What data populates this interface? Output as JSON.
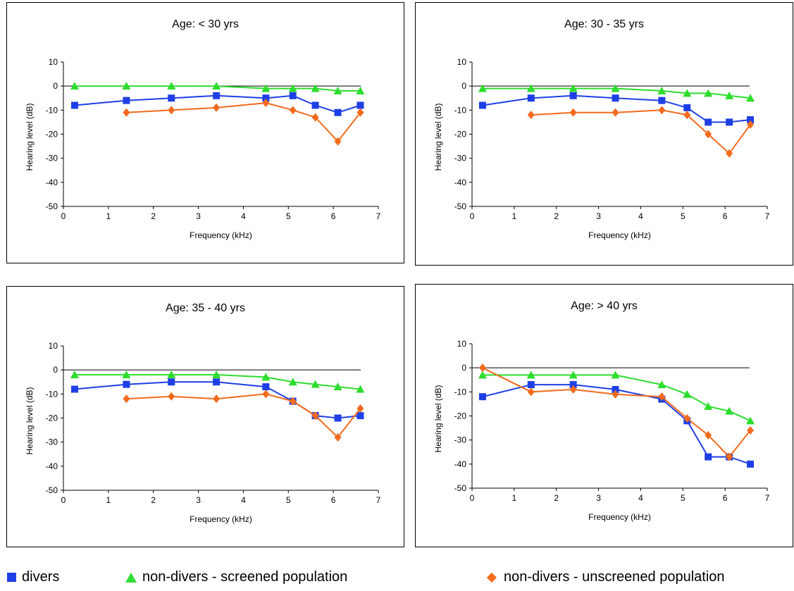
{
  "colors": {
    "divers": "#1f3fe6",
    "screened": "#2ddd2d",
    "unscreened": "#f36b1d"
  },
  "legend": {
    "divers": "divers",
    "screened": "non-divers - screened population",
    "unscreened": "non-divers - unscreened population"
  },
  "chart_data": [
    {
      "type": "line",
      "title": "Age: < 30 yrs",
      "xlabel": "Frequency (kHz)",
      "ylabel": "Hearing level (dB)",
      "xlim": [
        0,
        7
      ],
      "ylim": [
        -50,
        10
      ],
      "xticks": [
        "0",
        "1",
        "2",
        "3",
        "4",
        "5",
        "6",
        "7"
      ],
      "yticks": [
        "10",
        "0",
        "-10",
        "-20",
        "-30",
        "-40",
        "-50"
      ],
      "series": [
        {
          "name": "divers",
          "key": "divers",
          "marker": "square",
          "x": [
            0.25,
            1.4,
            2.4,
            3.4,
            4.5,
            5.1,
            5.6,
            6.1,
            6.6
          ],
          "y": [
            -8,
            -6,
            -5,
            -4,
            -5,
            -4,
            -8,
            -11,
            -8
          ]
        },
        {
          "name": "non-divers - screened population",
          "key": "screened",
          "marker": "triangle",
          "x": [
            0.25,
            1.4,
            2.4,
            3.4,
            4.5,
            5.1,
            5.6,
            6.1,
            6.6
          ],
          "y": [
            0,
            0,
            0,
            0,
            -1,
            -1,
            -1,
            -2,
            -2
          ]
        },
        {
          "name": "non-divers - unscreened population",
          "key": "unscreened",
          "marker": "diamond",
          "x": [
            1.4,
            2.4,
            3.4,
            4.5,
            5.1,
            5.6,
            6.1,
            6.6
          ],
          "y": [
            -11,
            -10,
            -9,
            -7,
            -10,
            -13,
            -23,
            -11
          ]
        }
      ]
    },
    {
      "type": "line",
      "title": "Age: 30 - 35 yrs",
      "xlabel": "Frequency (kHz)",
      "ylabel": "Hearing level (dB)",
      "xlim": [
        0,
        7
      ],
      "ylim": [
        -50,
        10
      ],
      "xticks": [
        "0",
        "1",
        "2",
        "3",
        "4",
        "5",
        "6",
        "7"
      ],
      "yticks": [
        "10",
        "0",
        "-10",
        "-20",
        "-30",
        "-40",
        "-50"
      ],
      "series": [
        {
          "name": "divers",
          "key": "divers",
          "marker": "square",
          "x": [
            0.25,
            1.4,
            2.4,
            3.4,
            4.5,
            5.1,
            5.6,
            6.1,
            6.6
          ],
          "y": [
            -8,
            -5,
            -4,
            -5,
            -6,
            -9,
            -15,
            -15,
            -14
          ]
        },
        {
          "name": "non-divers - screened population",
          "key": "screened",
          "marker": "triangle",
          "x": [
            0.25,
            1.4,
            2.4,
            3.4,
            4.5,
            5.1,
            5.6,
            6.1,
            6.6
          ],
          "y": [
            -1,
            -1,
            -1,
            -1,
            -2,
            -3,
            -3,
            -4,
            -5
          ]
        },
        {
          "name": "non-divers - unscreened population",
          "key": "unscreened",
          "marker": "diamond",
          "x": [
            1.4,
            2.4,
            3.4,
            4.5,
            5.1,
            5.6,
            6.1,
            6.6
          ],
          "y": [
            -12,
            -11,
            -11,
            -10,
            -12,
            -20,
            -28,
            -16
          ]
        }
      ]
    },
    {
      "type": "line",
      "title": "Age: 35 - 40 yrs",
      "xlabel": "Frequency (kHz)",
      "ylabel": "Hearing level (dB)",
      "xlim": [
        0,
        7
      ],
      "ylim": [
        -50,
        10
      ],
      "xticks": [
        "0",
        "1",
        "2",
        "3",
        "4",
        "5",
        "6",
        "7"
      ],
      "yticks": [
        "10",
        "0",
        "-10",
        "-20",
        "-30",
        "-40",
        "-50"
      ],
      "series": [
        {
          "name": "divers",
          "key": "divers",
          "marker": "square",
          "x": [
            0.25,
            1.4,
            2.4,
            3.4,
            4.5,
            5.1,
            5.6,
            6.1,
            6.6
          ],
          "y": [
            -8,
            -6,
            -5,
            -5,
            -7,
            -13,
            -19,
            -20,
            -19
          ]
        },
        {
          "name": "non-divers - screened population",
          "key": "screened",
          "marker": "triangle",
          "x": [
            0.25,
            1.4,
            2.4,
            3.4,
            4.5,
            5.1,
            5.6,
            6.1,
            6.6
          ],
          "y": [
            -2,
            -2,
            -2,
            -2,
            -3,
            -5,
            -6,
            -7,
            -8
          ]
        },
        {
          "name": "non-divers - unscreened population",
          "key": "unscreened",
          "marker": "diamond",
          "x": [
            1.4,
            2.4,
            3.4,
            4.5,
            5.1,
            5.6,
            6.1,
            6.6
          ],
          "y": [
            -12,
            -11,
            -12,
            -10,
            -13,
            -19,
            -28,
            -16
          ]
        }
      ]
    },
    {
      "type": "line",
      "title": "Age: > 40 yrs",
      "xlabel": "Frequency (kHz)",
      "ylabel": "Hearing level (dB)",
      "xlim": [
        0,
        7
      ],
      "ylim": [
        -50,
        10
      ],
      "xticks": [
        "0",
        "1",
        "2",
        "3",
        "4",
        "5",
        "6",
        "7"
      ],
      "yticks": [
        "10",
        "0",
        "-10",
        "-20",
        "-30",
        "-40",
        "-50"
      ],
      "series": [
        {
          "name": "divers",
          "key": "divers",
          "marker": "square",
          "x": [
            0.25,
            1.4,
            2.4,
            3.4,
            4.5,
            5.1,
            5.6,
            6.1,
            6.6
          ],
          "y": [
            -12,
            -7,
            -7,
            -9,
            -13,
            -22,
            -37,
            -37,
            -40
          ]
        },
        {
          "name": "non-divers - screened population",
          "key": "screened",
          "marker": "triangle",
          "x": [
            0.25,
            1.4,
            2.4,
            3.4,
            4.5,
            5.1,
            5.6,
            6.1,
            6.6
          ],
          "y": [
            -3,
            -3,
            -3,
            -3,
            -7,
            -11,
            -16,
            -18,
            -22
          ]
        },
        {
          "name": "non-divers - unscreened population",
          "key": "unscreened",
          "marker": "diamond",
          "x": [
            0.25,
            1.4,
            2.4,
            3.4,
            4.5,
            5.1,
            5.6,
            6.1,
            6.6
          ],
          "y": [
            0,
            -10,
            -9,
            -11,
            -12,
            -21,
            -28,
            -37,
            -26
          ]
        }
      ]
    }
  ]
}
